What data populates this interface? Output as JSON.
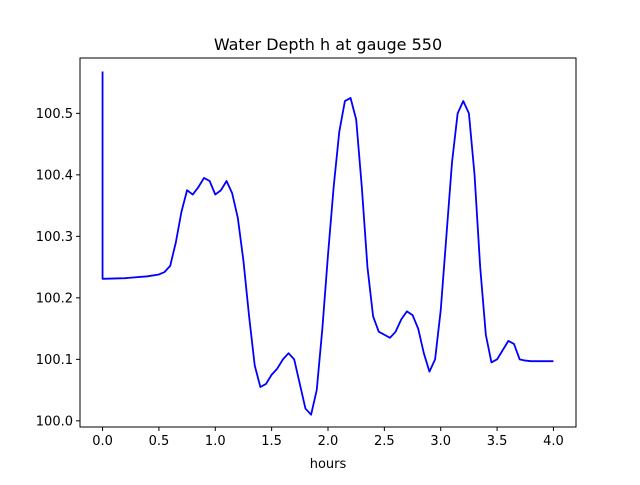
{
  "chart_data": {
    "type": "line",
    "title": "Water Depth h at gauge 550",
    "xlabel": "hours",
    "ylabel": "",
    "xlim": [
      -0.2,
      4.2
    ],
    "ylim": [
      99.99,
      100.59
    ],
    "xticks": [
      0.0,
      0.5,
      1.0,
      1.5,
      2.0,
      2.5,
      3.0,
      3.5,
      4.0
    ],
    "xtick_labels": [
      "0.0",
      "0.5",
      "1.0",
      "1.5",
      "2.0",
      "2.5",
      "3.0",
      "3.5",
      "4.0"
    ],
    "yticks": [
      100.0,
      100.1,
      100.2,
      100.3,
      100.4,
      100.5
    ],
    "ytick_labels": [
      "100.0",
      "100.1",
      "100.2",
      "100.3",
      "100.4",
      "100.5"
    ],
    "grid": false,
    "series": [
      {
        "color": "#0000ff",
        "x": [
          0.0,
          0.0,
          0.0,
          0.2,
          0.4,
          0.5,
          0.55,
          0.6,
          0.65,
          0.7,
          0.75,
          0.8,
          0.85,
          0.9,
          0.95,
          1.0,
          1.05,
          1.1,
          1.15,
          1.2,
          1.25,
          1.3,
          1.35,
          1.4,
          1.45,
          1.5,
          1.55,
          1.6,
          1.65,
          1.7,
          1.75,
          1.8,
          1.85,
          1.9,
          1.95,
          2.0,
          2.05,
          2.1,
          2.15,
          2.2,
          2.25,
          2.3,
          2.35,
          2.4,
          2.45,
          2.5,
          2.55,
          2.6,
          2.65,
          2.7,
          2.75,
          2.8,
          2.85,
          2.9,
          2.95,
          3.0,
          3.05,
          3.1,
          3.15,
          3.2,
          3.25,
          3.3,
          3.35,
          3.4,
          3.45,
          3.5,
          3.55,
          3.6,
          3.65,
          3.7,
          3.75,
          3.8,
          3.85,
          3.9,
          3.95,
          4.0
        ],
        "y": [
          100.568,
          100.55,
          100.231,
          100.232,
          100.235,
          100.238,
          100.242,
          100.252,
          100.29,
          100.34,
          100.375,
          100.368,
          100.38,
          100.395,
          100.39,
          100.368,
          100.375,
          100.39,
          100.37,
          100.33,
          100.26,
          100.17,
          100.09,
          100.055,
          100.06,
          100.075,
          100.085,
          100.1,
          100.11,
          100.1,
          100.06,
          100.02,
          100.01,
          100.05,
          100.15,
          100.27,
          100.38,
          100.47,
          100.52,
          100.525,
          100.49,
          100.38,
          100.25,
          100.17,
          100.145,
          100.14,
          100.135,
          100.145,
          100.165,
          100.178,
          100.172,
          100.15,
          100.11,
          100.08,
          100.1,
          100.18,
          100.3,
          100.42,
          100.5,
          100.52,
          100.5,
          100.4,
          100.25,
          100.14,
          100.095,
          100.1,
          100.115,
          100.13,
          100.125,
          100.1,
          100.098,
          100.097,
          100.097,
          100.097,
          100.097,
          100.097
        ]
      }
    ]
  }
}
